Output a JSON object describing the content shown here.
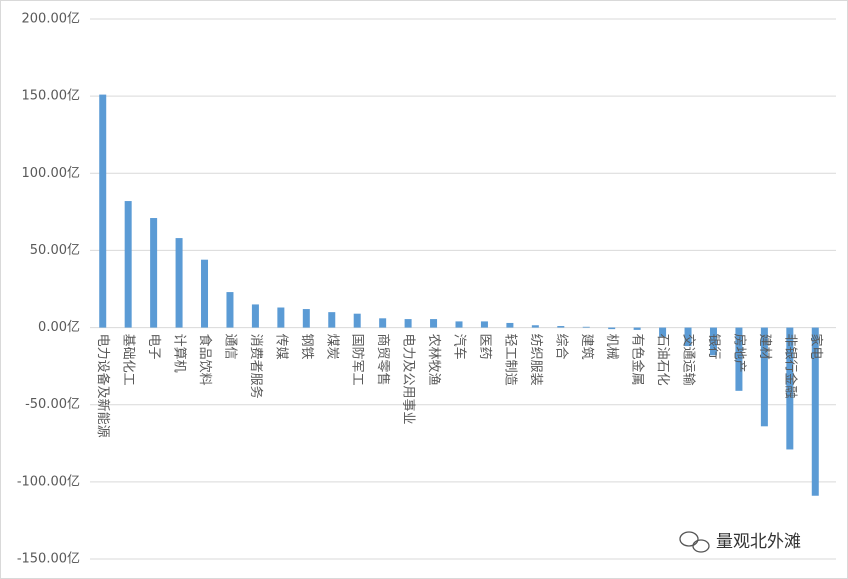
{
  "chart_data": {
    "type": "bar",
    "categories": [
      "电力设备及新能源",
      "基础化工",
      "电子",
      "计算机",
      "食品饮料",
      "通信",
      "消费者服务",
      "传媒",
      "钢铁",
      "煤炭",
      "国防军工",
      "商贸零售",
      "电力及公用事业",
      "农林牧渔",
      "汽车",
      "医药",
      "轻工制造",
      "纺织服装",
      "综合",
      "建筑",
      "机械",
      "有色金属",
      "石油石化",
      "交通运输",
      "银行",
      "房地产",
      "建材",
      "非银行金融",
      "家电"
    ],
    "values": [
      151,
      82,
      71,
      58,
      44,
      23,
      15,
      13,
      12,
      10,
      9,
      6,
      5.5,
      5.5,
      4,
      4,
      3,
      1.5,
      1,
      0.5,
      -1,
      -1.5,
      -6,
      -12,
      -18,
      -41,
      -64,
      -79,
      -109
    ],
    "color": "#5b9bd5",
    "ylim": [
      -150,
      200
    ],
    "yticks": [
      {
        "value": -150,
        "label": "-150.00亿"
      },
      {
        "value": -100,
        "label": "-100.00亿"
      },
      {
        "value": -50,
        "label": "-50.00亿"
      },
      {
        "value": 0,
        "label": "0.00亿"
      },
      {
        "value": 50,
        "label": "50.00亿"
      },
      {
        "value": 100,
        "label": "100.00亿"
      },
      {
        "value": 150,
        "label": "150.00亿"
      },
      {
        "value": 200,
        "label": "200.00亿"
      }
    ],
    "grid": true,
    "watermark": "量观北外滩"
  }
}
